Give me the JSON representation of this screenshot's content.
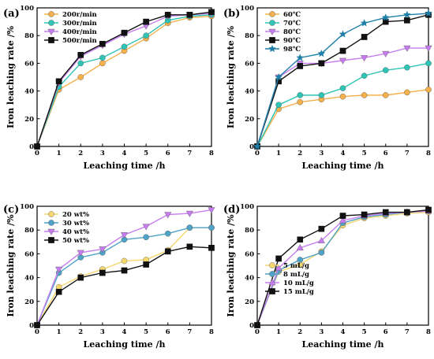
{
  "chart_data": [
    {
      "panel": "(a)",
      "type": "line",
      "xlabel": "Leaching time /h",
      "ylabel": "Iron leaching rate /%",
      "xlim": [
        0,
        8
      ],
      "ylim": [
        0,
        100
      ],
      "xticks": [
        0,
        1,
        2,
        3,
        4,
        5,
        6,
        7,
        8
      ],
      "yticks": [
        0,
        20,
        40,
        60,
        80,
        100
      ],
      "legend_position": "top-left",
      "x": [
        0,
        1,
        2,
        3,
        4,
        5,
        6,
        7,
        8
      ],
      "series": [
        {
          "name": "200r/min",
          "color": "#F5B04B",
          "marker": "circle",
          "values": [
            0,
            41,
            50,
            60,
            69,
            78,
            89,
            93,
            94
          ]
        },
        {
          "name": "300r/min",
          "color": "#2EC4B6",
          "marker": "circle",
          "values": [
            0,
            43,
            60,
            64,
            72,
            80,
            91,
            94,
            95
          ]
        },
        {
          "name": "400r/min",
          "color": "#C77DF0",
          "marker": "triangle-down",
          "values": [
            0,
            46,
            65,
            73,
            81,
            87,
            94,
            95,
            96
          ]
        },
        {
          "name": "500r/min",
          "color": "#111111",
          "marker": "square",
          "values": [
            0,
            47,
            66,
            74,
            82,
            90,
            95,
            95,
            97
          ]
        }
      ]
    },
    {
      "panel": "(b)",
      "type": "line",
      "xlabel": "Leaching time /h",
      "ylabel": "Iron leaching rate /%",
      "xlim": [
        0,
        8
      ],
      "ylim": [
        0,
        100
      ],
      "xticks": [
        0,
        1,
        2,
        3,
        4,
        5,
        6,
        7,
        8
      ],
      "yticks": [
        0,
        20,
        40,
        60,
        80,
        100
      ],
      "legend_position": "top-left",
      "x": [
        0,
        1,
        2,
        3,
        4,
        5,
        6,
        7,
        8
      ],
      "series": [
        {
          "name": "60℃",
          "color": "#F5B04B",
          "marker": "circle",
          "values": [
            0,
            27,
            32,
            34,
            36,
            37,
            37,
            39,
            41
          ]
        },
        {
          "name": "70℃",
          "color": "#2EC4B6",
          "marker": "circle",
          "values": [
            0,
            30,
            37,
            37,
            42,
            51,
            55,
            57,
            60
          ]
        },
        {
          "name": "80℃",
          "color": "#C77DF0",
          "marker": "triangle-down",
          "values": [
            0,
            50,
            60,
            60,
            62,
            64,
            67,
            71,
            71
          ]
        },
        {
          "name": "90℃",
          "color": "#111111",
          "marker": "square",
          "values": [
            0,
            47,
            58,
            60,
            69,
            79,
            90,
            91,
            95
          ]
        },
        {
          "name": "98℃",
          "color": "#1F7FA8",
          "marker": "star",
          "values": [
            0,
            50,
            64,
            67,
            81,
            89,
            93,
            95,
            96
          ]
        }
      ]
    },
    {
      "panel": "(c)",
      "type": "line",
      "xlabel": "Leaching time /h",
      "ylabel": "Iron leaching rate /%",
      "xlim": [
        0,
        8
      ],
      "ylim": [
        0,
        100
      ],
      "xticks": [
        0,
        1,
        2,
        3,
        4,
        5,
        6,
        7,
        8
      ],
      "yticks": [
        0,
        20,
        40,
        60,
        80,
        100
      ],
      "legend_position": "top-left",
      "x": [
        0,
        1,
        2,
        3,
        4,
        5,
        6,
        7,
        8
      ],
      "series": [
        {
          "name": "20 wt%",
          "color": "#F5D76E",
          "marker": "circle",
          "values": [
            0,
            32,
            41,
            47,
            54,
            55,
            63,
            82,
            82
          ]
        },
        {
          "name": "30 wt%",
          "color": "#4FA3C7",
          "marker": "circle",
          "values": [
            0,
            44,
            57,
            61,
            72,
            74,
            77,
            82,
            82
          ]
        },
        {
          "name": "40 wt%",
          "color": "#C77DF0",
          "marker": "triangle-down",
          "values": [
            0,
            47,
            61,
            64,
            76,
            83,
            93,
            94,
            97
          ]
        },
        {
          "name": "50 wt%",
          "color": "#111111",
          "marker": "square",
          "values": [
            0,
            28,
            40,
            44,
            46,
            51,
            62,
            66,
            65
          ]
        }
      ]
    },
    {
      "panel": "(d)",
      "type": "line",
      "xlabel": "Leaching time /h",
      "ylabel": "Iron leaching rate /%",
      "xlim": [
        0,
        8
      ],
      "ylim": [
        0,
        100
      ],
      "xticks": [
        0,
        1,
        2,
        3,
        4,
        5,
        6,
        7,
        8
      ],
      "yticks": [
        0,
        20,
        40,
        60,
        80,
        100
      ],
      "legend_position": "bottom-left",
      "x": [
        0,
        1,
        2,
        3,
        4,
        5,
        6,
        7,
        8
      ],
      "series": [
        {
          "name": "5 mL/g",
          "color": "#F5D76E",
          "marker": "circle",
          "values": [
            0,
            45,
            51,
            62,
            84,
            90,
            92,
            94,
            95
          ]
        },
        {
          "name": "8 mL/g",
          "color": "#4FA3C7",
          "marker": "circle",
          "values": [
            0,
            46,
            55,
            61,
            86,
            91,
            93,
            95,
            96
          ]
        },
        {
          "name": "10 mL/g",
          "color": "#C77DF0",
          "marker": "triangle-up",
          "values": [
            0,
            48,
            65,
            71,
            88,
            92,
            94,
            95,
            96
          ]
        },
        {
          "name": "15 mL/g",
          "color": "#111111",
          "marker": "square",
          "values": [
            0,
            56,
            72,
            81,
            92,
            93,
            95,
            95,
            97
          ]
        }
      ]
    }
  ]
}
